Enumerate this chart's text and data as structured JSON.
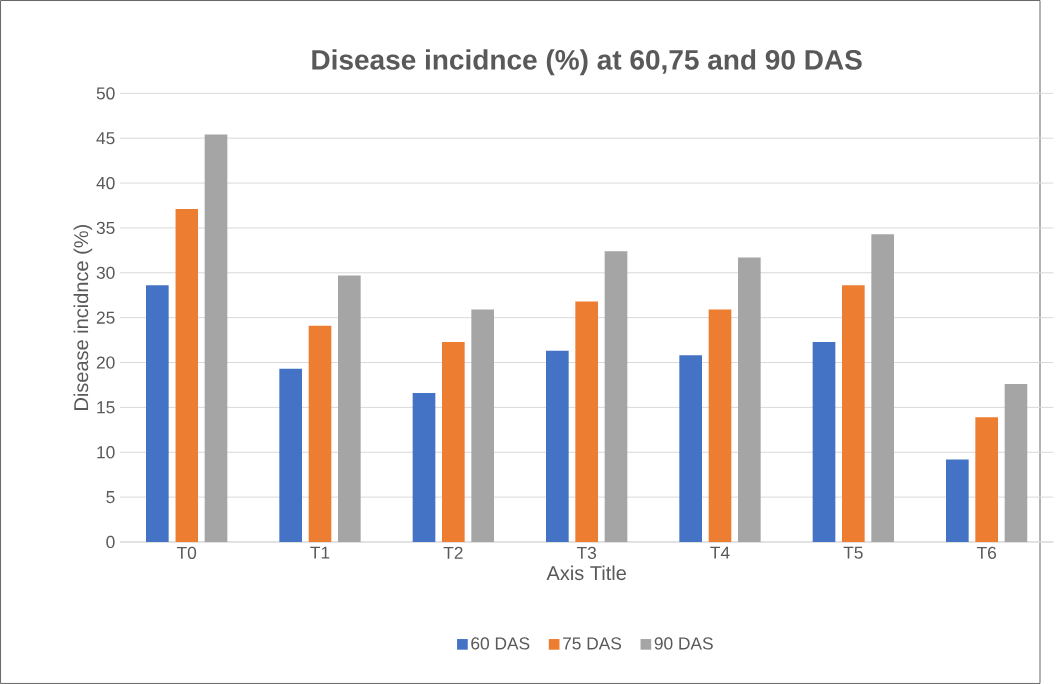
{
  "chart_data": {
    "type": "bar",
    "title": "Disease incidnce (%) at 60,75 and 90 DAS",
    "xlabel": "Axis Title",
    "ylabel": "Disease incidnce  (%)",
    "categories": [
      "T0",
      "T1",
      "T2",
      "T3",
      "T4",
      "T5",
      "T6"
    ],
    "series": [
      {
        "name": "60 DAS",
        "color": "#4472c4",
        "values": [
          28.6,
          19.3,
          16.6,
          21.3,
          20.8,
          22.3,
          9.2
        ]
      },
      {
        "name": "75 DAS",
        "color": "#ed7d31",
        "values": [
          37.1,
          24.1,
          22.3,
          26.8,
          25.9,
          28.6,
          13.9
        ]
      },
      {
        "name": "90 DAS",
        "color": "#a5a5a5",
        "values": [
          45.4,
          29.7,
          25.9,
          32.4,
          31.7,
          34.3,
          17.6
        ]
      }
    ],
    "ylim": [
      0,
      50
    ],
    "yticks": [
      0,
      5,
      10,
      15,
      20,
      25,
      30,
      35,
      40,
      45,
      50
    ],
    "grid": "y",
    "legend": "bottom"
  }
}
